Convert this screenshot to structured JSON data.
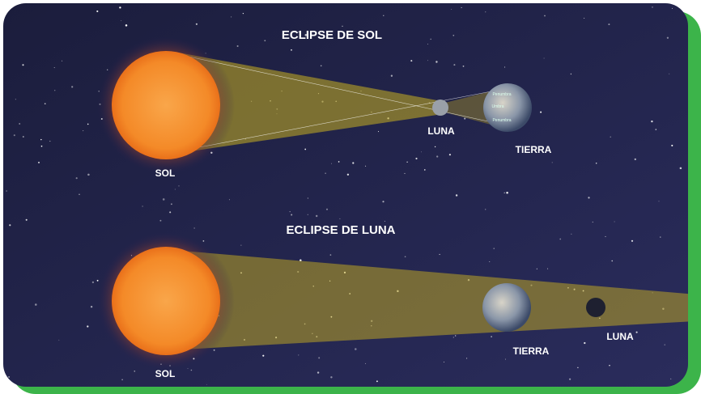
{
  "solar_eclipse": {
    "title": "ECLIPSE DE SOL",
    "sun_label": "SOL",
    "moon_label": "LUNA",
    "earth_label": "TIERRA",
    "earth_zones": [
      "Penumbra",
      "Umbra",
      "Penumbra"
    ]
  },
  "lunar_eclipse": {
    "title": "ECLIPSE DE LUNA",
    "sun_label": "SOL",
    "earth_label": "TIERRA",
    "moon_label": "LUNA"
  }
}
